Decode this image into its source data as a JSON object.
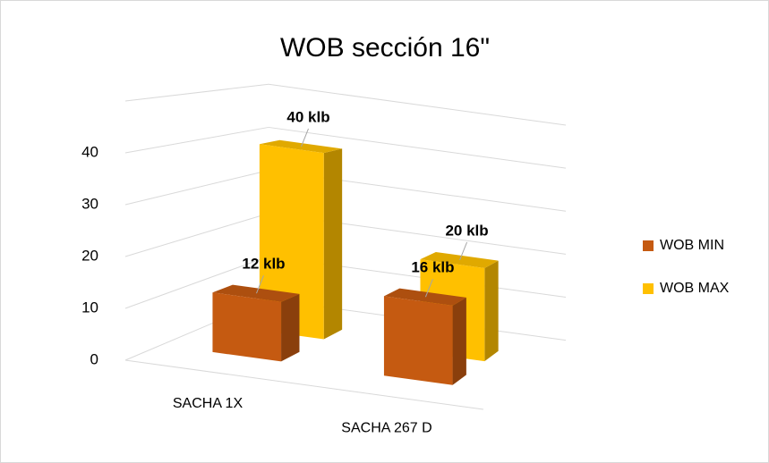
{
  "chart_data": {
    "type": "bar3d",
    "title": "WOB sección 16\"",
    "categories": [
      "SACHA 1X",
      "SACHA 267 D"
    ],
    "series": [
      {
        "name": "WOB MIN",
        "color": "#c55a11",
        "values": [
          12,
          16
        ],
        "value_labels": [
          "12 klb",
          "16 klb"
        ]
      },
      {
        "name": "WOB MAX",
        "color": "#ffc000",
        "values": [
          40,
          20
        ],
        "value_labels": [
          "40 klb",
          "20 klb"
        ]
      }
    ],
    "ylim": [
      0,
      50
    ],
    "yticks": [
      0,
      10,
      20,
      30,
      40
    ],
    "grid": true,
    "legend": "right"
  }
}
